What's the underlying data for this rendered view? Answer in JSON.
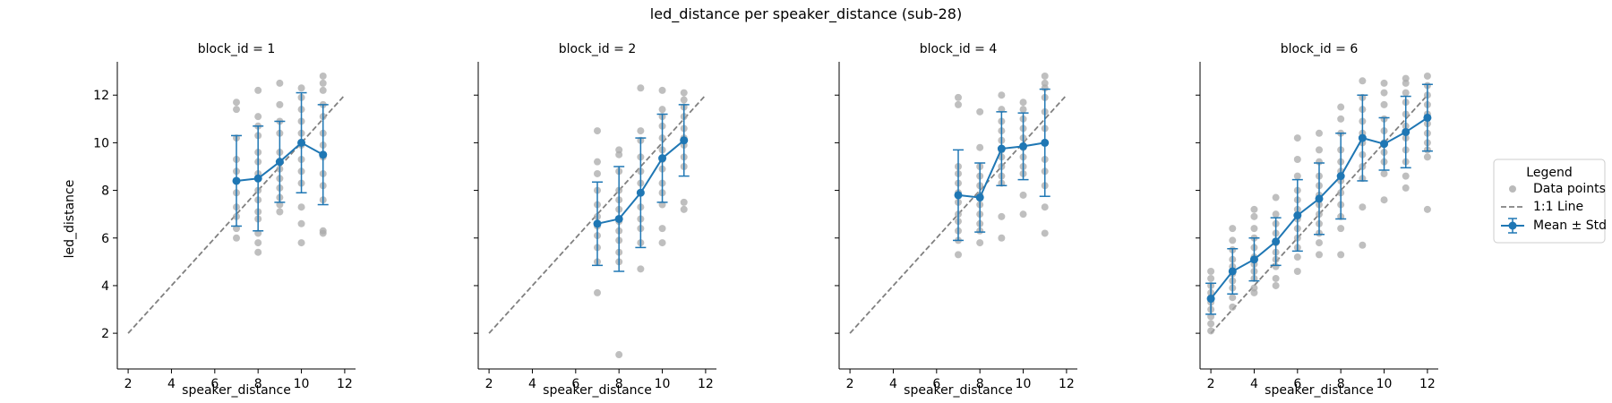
{
  "figure": {
    "suptitle": "led_distance per speaker_distance (sub-28)",
    "xlabel": "speaker_distance",
    "ylabel": "led_distance"
  },
  "legend": {
    "title": "Legend",
    "placement": "right",
    "entries": [
      {
        "label": "Data points",
        "kind": "scatter"
      },
      {
        "label": "1:1 Line",
        "kind": "dashed-line"
      },
      {
        "label": "Mean ± Std",
        "kind": "errorbar"
      }
    ]
  },
  "colors": {
    "points": "#a9a9a9",
    "mean": "#1f77b4",
    "identity": "#808080"
  },
  "chart_data": [
    {
      "type": "scatter",
      "title": "block_id = 1",
      "xlim": [
        1.5,
        12.5
      ],
      "ylim": [
        0.5,
        13.4
      ],
      "xticks": [
        2,
        4,
        6,
        8,
        10,
        12
      ],
      "yticks": [
        2,
        4,
        6,
        8,
        10,
        12
      ],
      "identity_line": [
        2,
        12
      ],
      "points": [
        [
          7,
          11.7
        ],
        [
          7,
          11.4
        ],
        [
          7,
          10.2
        ],
        [
          7,
          9.3
        ],
        [
          7,
          8.8
        ],
        [
          7,
          8.4
        ],
        [
          7,
          7.9
        ],
        [
          7,
          7.3
        ],
        [
          7,
          6.9
        ],
        [
          7,
          6.4
        ],
        [
          7,
          6.0
        ],
        [
          8,
          12.2
        ],
        [
          8,
          11.1
        ],
        [
          8,
          10.7
        ],
        [
          8,
          10.3
        ],
        [
          8,
          9.6
        ],
        [
          8,
          9.2
        ],
        [
          8,
          8.7
        ],
        [
          8,
          8.0
        ],
        [
          8,
          7.6
        ],
        [
          8,
          7.1
        ],
        [
          8,
          6.8
        ],
        [
          8,
          6.2
        ],
        [
          8,
          5.8
        ],
        [
          8,
          5.4
        ],
        [
          9,
          12.5
        ],
        [
          9,
          11.6
        ],
        [
          9,
          10.9
        ],
        [
          9,
          10.4
        ],
        [
          9,
          9.6
        ],
        [
          9,
          9.2
        ],
        [
          9,
          8.9
        ],
        [
          9,
          8.5
        ],
        [
          9,
          8.1
        ],
        [
          9,
          7.7
        ],
        [
          9,
          7.4
        ],
        [
          9,
          7.1
        ],
        [
          10,
          12.3
        ],
        [
          10,
          11.9
        ],
        [
          10,
          11.4
        ],
        [
          10,
          10.9
        ],
        [
          10,
          10.4
        ],
        [
          10,
          9.9
        ],
        [
          10,
          9.3
        ],
        [
          10,
          8.8
        ],
        [
          10,
          8.3
        ],
        [
          10,
          7.3
        ],
        [
          10,
          6.6
        ],
        [
          10,
          5.8
        ],
        [
          11,
          12.8
        ],
        [
          11,
          12.5
        ],
        [
          11,
          12.2
        ],
        [
          11,
          11.6
        ],
        [
          11,
          11.1
        ],
        [
          11,
          10.4
        ],
        [
          11,
          9.9
        ],
        [
          11,
          9.4
        ],
        [
          11,
          8.7
        ],
        [
          11,
          8.2
        ],
        [
          11,
          7.6
        ],
        [
          11,
          6.3
        ],
        [
          11,
          6.2
        ]
      ],
      "mean_series": [
        {
          "x": 7,
          "mean": 8.4,
          "std": 1.9
        },
        {
          "x": 8,
          "mean": 8.5,
          "std": 2.2
        },
        {
          "x": 9,
          "mean": 9.2,
          "std": 1.7
        },
        {
          "x": 10,
          "mean": 10.0,
          "std": 2.1
        },
        {
          "x": 11,
          "mean": 9.5,
          "std": 2.1
        }
      ]
    },
    {
      "type": "scatter",
      "title": "block_id = 2",
      "xlim": [
        1.5,
        12.5
      ],
      "ylim": [
        0.5,
        13.4
      ],
      "xticks": [
        2,
        4,
        6,
        8,
        10,
        12
      ],
      "yticks": [
        2,
        4,
        6,
        8,
        10,
        12
      ],
      "identity_line": [
        2,
        12
      ],
      "points": [
        [
          7,
          10.5
        ],
        [
          7,
          9.2
        ],
        [
          7,
          8.7
        ],
        [
          7,
          8.0
        ],
        [
          7,
          7.4
        ],
        [
          7,
          6.9
        ],
        [
          7,
          6.5
        ],
        [
          7,
          6.1
        ],
        [
          7,
          5.6
        ],
        [
          7,
          5.0
        ],
        [
          7,
          3.7
        ],
        [
          8,
          9.7
        ],
        [
          8,
          9.5
        ],
        [
          8,
          8.8
        ],
        [
          8,
          8.0
        ],
        [
          8,
          7.6
        ],
        [
          8,
          7.2
        ],
        [
          8,
          6.7
        ],
        [
          8,
          6.3
        ],
        [
          8,
          5.9
        ],
        [
          8,
          5.4
        ],
        [
          8,
          5.0
        ],
        [
          8,
          1.1
        ],
        [
          9,
          12.3
        ],
        [
          9,
          10.5
        ],
        [
          9,
          10.1
        ],
        [
          9,
          9.4
        ],
        [
          9,
          8.8
        ],
        [
          9,
          8.3
        ],
        [
          9,
          7.9
        ],
        [
          9,
          7.3
        ],
        [
          9,
          6.8
        ],
        [
          9,
          6.4
        ],
        [
          9,
          5.8
        ],
        [
          9,
          4.7
        ],
        [
          10,
          12.2
        ],
        [
          10,
          11.4
        ],
        [
          10,
          11.1
        ],
        [
          10,
          10.7
        ],
        [
          10,
          10.2
        ],
        [
          10,
          9.7
        ],
        [
          10,
          9.3
        ],
        [
          10,
          8.9
        ],
        [
          10,
          8.3
        ],
        [
          10,
          7.9
        ],
        [
          10,
          7.4
        ],
        [
          10,
          6.4
        ],
        [
          10,
          5.8
        ],
        [
          11,
          12.1
        ],
        [
          11,
          11.8
        ],
        [
          11,
          11.5
        ],
        [
          11,
          11.1
        ],
        [
          11,
          10.6
        ],
        [
          11,
          10.2
        ],
        [
          11,
          9.9
        ],
        [
          11,
          9.4
        ],
        [
          11,
          9.0
        ],
        [
          11,
          7.5
        ],
        [
          11,
          7.2
        ]
      ],
      "mean_series": [
        {
          "x": 7,
          "mean": 6.6,
          "std": 1.75
        },
        {
          "x": 8,
          "mean": 6.8,
          "std": 2.2
        },
        {
          "x": 9,
          "mean": 7.9,
          "std": 2.3
        },
        {
          "x": 10,
          "mean": 9.35,
          "std": 1.85
        },
        {
          "x": 11,
          "mean": 10.1,
          "std": 1.5
        }
      ]
    },
    {
      "type": "scatter",
      "title": "block_id = 4",
      "xlim": [
        1.5,
        12.5
      ],
      "ylim": [
        0.5,
        13.4
      ],
      "xticks": [
        2,
        4,
        6,
        8,
        10,
        12
      ],
      "yticks": [
        2,
        4,
        6,
        8,
        10,
        12
      ],
      "identity_line": [
        2,
        12
      ],
      "points": [
        [
          7,
          11.9
        ],
        [
          7,
          11.6
        ],
        [
          7,
          9.0
        ],
        [
          7,
          8.7
        ],
        [
          7,
          8.3
        ],
        [
          7,
          7.9
        ],
        [
          7,
          7.5
        ],
        [
          7,
          7.0
        ],
        [
          7,
          6.7
        ],
        [
          7,
          6.3
        ],
        [
          7,
          5.9
        ],
        [
          7,
          5.3
        ],
        [
          8,
          11.3
        ],
        [
          8,
          9.8
        ],
        [
          8,
          9.0
        ],
        [
          8,
          8.6
        ],
        [
          8,
          8.2
        ],
        [
          8,
          7.8
        ],
        [
          8,
          7.4
        ],
        [
          8,
          7.0
        ],
        [
          8,
          6.6
        ],
        [
          8,
          6.3
        ],
        [
          8,
          5.8
        ],
        [
          9,
          12.0
        ],
        [
          9,
          11.4
        ],
        [
          9,
          10.9
        ],
        [
          9,
          10.5
        ],
        [
          9,
          10.1
        ],
        [
          9,
          9.7
        ],
        [
          9,
          9.4
        ],
        [
          9,
          9.0
        ],
        [
          9,
          8.6
        ],
        [
          9,
          8.3
        ],
        [
          9,
          6.9
        ],
        [
          9,
          6.0
        ],
        [
          10,
          11.7
        ],
        [
          10,
          11.4
        ],
        [
          10,
          11.0
        ],
        [
          10,
          10.6
        ],
        [
          10,
          10.2
        ],
        [
          10,
          9.8
        ],
        [
          10,
          9.4
        ],
        [
          10,
          9.0
        ],
        [
          10,
          8.7
        ],
        [
          10,
          7.8
        ],
        [
          10,
          7.0
        ],
        [
          11,
          12.8
        ],
        [
          11,
          12.5
        ],
        [
          11,
          12.3
        ],
        [
          11,
          11.9
        ],
        [
          11,
          11.3
        ],
        [
          11,
          10.6
        ],
        [
          11,
          10.0
        ],
        [
          11,
          9.3
        ],
        [
          11,
          8.8
        ],
        [
          11,
          8.2
        ],
        [
          11,
          7.3
        ],
        [
          11,
          6.2
        ]
      ],
      "mean_series": [
        {
          "x": 7,
          "mean": 7.8,
          "std": 1.9
        },
        {
          "x": 8,
          "mean": 7.7,
          "std": 1.45
        },
        {
          "x": 9,
          "mean": 9.75,
          "std": 1.55
        },
        {
          "x": 10,
          "mean": 9.85,
          "std": 1.4
        },
        {
          "x": 11,
          "mean": 10.0,
          "std": 2.25
        }
      ]
    },
    {
      "type": "scatter",
      "title": "block_id = 6",
      "xlim": [
        1.5,
        12.5
      ],
      "ylim": [
        0.5,
        13.4
      ],
      "xticks": [
        2,
        4,
        6,
        8,
        10,
        12
      ],
      "yticks": [
        2,
        4,
        6,
        8,
        10,
        12
      ],
      "identity_line": [
        2,
        12
      ],
      "points": [
        [
          2,
          4.6
        ],
        [
          2,
          4.3
        ],
        [
          2,
          4.0
        ],
        [
          2,
          3.7
        ],
        [
          2,
          3.5
        ],
        [
          2,
          3.3
        ],
        [
          2,
          3.0
        ],
        [
          2,
          2.7
        ],
        [
          2,
          2.4
        ],
        [
          2,
          2.1
        ],
        [
          3,
          6.4
        ],
        [
          3,
          5.9
        ],
        [
          3,
          5.5
        ],
        [
          3,
          5.1
        ],
        [
          3,
          4.8
        ],
        [
          3,
          4.5
        ],
        [
          3,
          4.2
        ],
        [
          3,
          3.9
        ],
        [
          3,
          3.5
        ],
        [
          3,
          3.1
        ],
        [
          4,
          7.2
        ],
        [
          4,
          6.9
        ],
        [
          4,
          6.4
        ],
        [
          4,
          6.0
        ],
        [
          4,
          5.6
        ],
        [
          4,
          5.2
        ],
        [
          4,
          4.9
        ],
        [
          4,
          4.6
        ],
        [
          4,
          4.3
        ],
        [
          4,
          3.9
        ],
        [
          4,
          3.7
        ],
        [
          5,
          7.7
        ],
        [
          5,
          7.0
        ],
        [
          5,
          6.6
        ],
        [
          5,
          6.2
        ],
        [
          5,
          5.8
        ],
        [
          5,
          5.4
        ],
        [
          5,
          5.1
        ],
        [
          5,
          4.8
        ],
        [
          5,
          4.3
        ],
        [
          5,
          4.0
        ],
        [
          6,
          10.2
        ],
        [
          6,
          9.3
        ],
        [
          6,
          8.6
        ],
        [
          6,
          8.0
        ],
        [
          6,
          7.6
        ],
        [
          6,
          7.2
        ],
        [
          6,
          6.8
        ],
        [
          6,
          6.4
        ],
        [
          6,
          6.0
        ],
        [
          6,
          5.6
        ],
        [
          6,
          5.2
        ],
        [
          6,
          4.6
        ],
        [
          7,
          10.4
        ],
        [
          7,
          9.7
        ],
        [
          7,
          9.2
        ],
        [
          7,
          8.6
        ],
        [
          7,
          8.2
        ],
        [
          7,
          7.8
        ],
        [
          7,
          7.4
        ],
        [
          7,
          7.0
        ],
        [
          7,
          6.6
        ],
        [
          7,
          6.2
        ],
        [
          7,
          5.8
        ],
        [
          7,
          5.3
        ],
        [
          8,
          11.5
        ],
        [
          8,
          11.0
        ],
        [
          8,
          10.4
        ],
        [
          8,
          9.7
        ],
        [
          8,
          9.2
        ],
        [
          8,
          8.8
        ],
        [
          8,
          8.4
        ],
        [
          8,
          7.9
        ],
        [
          8,
          7.4
        ],
        [
          8,
          6.9
        ],
        [
          8,
          6.4
        ],
        [
          8,
          5.3
        ],
        [
          9,
          12.6
        ],
        [
          9,
          11.9
        ],
        [
          9,
          11.4
        ],
        [
          9,
          10.9
        ],
        [
          9,
          10.4
        ],
        [
          9,
          10.0
        ],
        [
          9,
          9.5
        ],
        [
          9,
          9.0
        ],
        [
          9,
          8.5
        ],
        [
          9,
          7.3
        ],
        [
          9,
          5.7
        ],
        [
          10,
          12.5
        ],
        [
          10,
          12.1
        ],
        [
          10,
          11.6
        ],
        [
          10,
          11.0
        ],
        [
          10,
          10.5
        ],
        [
          10,
          10.0
        ],
        [
          10,
          9.6
        ],
        [
          10,
          9.2
        ],
        [
          10,
          8.7
        ],
        [
          10,
          7.6
        ],
        [
          11,
          12.7
        ],
        [
          11,
          12.5
        ],
        [
          11,
          12.1
        ],
        [
          11,
          11.7
        ],
        [
          11,
          11.2
        ],
        [
          11,
          10.7
        ],
        [
          11,
          10.2
        ],
        [
          11,
          9.7
        ],
        [
          11,
          9.2
        ],
        [
          11,
          8.6
        ],
        [
          11,
          8.1
        ],
        [
          12,
          12.8
        ],
        [
          12,
          12.4
        ],
        [
          12,
          12.0
        ],
        [
          12,
          11.6
        ],
        [
          12,
          11.2
        ],
        [
          12,
          10.8
        ],
        [
          12,
          10.4
        ],
        [
          12,
          10.0
        ],
        [
          12,
          9.7
        ],
        [
          12,
          9.4
        ],
        [
          12,
          7.2
        ]
      ],
      "mean_series": [
        {
          "x": 2,
          "mean": 3.45,
          "std": 0.65
        },
        {
          "x": 3,
          "mean": 4.6,
          "std": 0.95
        },
        {
          "x": 4,
          "mean": 5.1,
          "std": 0.9
        },
        {
          "x": 5,
          "mean": 5.85,
          "std": 1.0
        },
        {
          "x": 6,
          "mean": 6.95,
          "std": 1.5
        },
        {
          "x": 7,
          "mean": 7.65,
          "std": 1.5
        },
        {
          "x": 8,
          "mean": 8.6,
          "std": 1.8
        },
        {
          "x": 9,
          "mean": 10.2,
          "std": 1.8
        },
        {
          "x": 10,
          "mean": 9.95,
          "std": 1.1
        },
        {
          "x": 11,
          "mean": 10.45,
          "std": 1.5
        },
        {
          "x": 12,
          "mean": 11.05,
          "std": 1.4
        }
      ]
    }
  ]
}
